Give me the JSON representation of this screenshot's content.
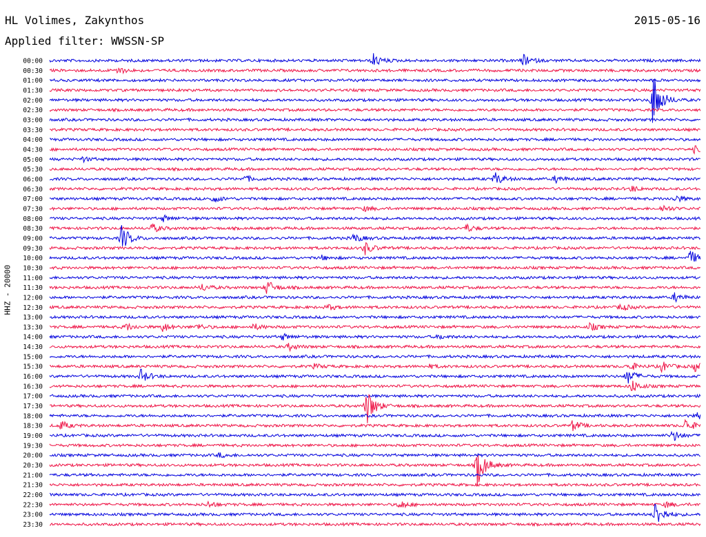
{
  "header": {
    "station": "HL Volimes, Zakynthos",
    "filter": "Applied filter: WWSSN-SP",
    "date": "2015-05-16"
  },
  "channel_label": "HHZ - 20000",
  "colors": {
    "trace_a": "#0000dd",
    "trace_b": "#ee1144"
  },
  "chart_data": {
    "type": "line",
    "title": "HL Volimes, Zakynthos",
    "subtitle": "Applied filter: WWSSN-SP",
    "ylabel": "HHZ - 20000",
    "xlabel": "",
    "rows": [
      "00:00",
      "00:30",
      "01:00",
      "01:30",
      "02:00",
      "02:30",
      "03:00",
      "03:30",
      "04:00",
      "04:30",
      "05:00",
      "05:30",
      "06:00",
      "06:30",
      "07:00",
      "07:30",
      "08:00",
      "08:30",
      "09:00",
      "09:30",
      "10:00",
      "10:30",
      "11:00",
      "11:30",
      "12:00",
      "12:30",
      "13:00",
      "13:30",
      "14:00",
      "14:30",
      "15:00",
      "15:30",
      "16:00",
      "16:30",
      "17:00",
      "17:30",
      "18:00",
      "18:30",
      "19:00",
      "19:30",
      "20:00",
      "20:30",
      "21:00",
      "21:30",
      "22:00",
      "22:30",
      "23:00",
      "23:30"
    ],
    "x_range_minutes": [
      0,
      30
    ],
    "events": [
      {
        "row": 0,
        "minute": 14.9,
        "amp": 0.9
      },
      {
        "row": 0,
        "minute": 21.8,
        "amp": 0.8
      },
      {
        "row": 1,
        "minute": 3.1,
        "amp": 0.5
      },
      {
        "row": 4,
        "minute": 27.8,
        "amp": 4.0
      },
      {
        "row": 9,
        "minute": 29.7,
        "amp": 0.4
      },
      {
        "row": 10,
        "minute": 1.5,
        "amp": 0.3
      },
      {
        "row": 12,
        "minute": 9.0,
        "amp": 0.4
      },
      {
        "row": 12,
        "minute": 20.5,
        "amp": 0.9
      },
      {
        "row": 12,
        "minute": 23.3,
        "amp": 0.5
      },
      {
        "row": 13,
        "minute": 26.8,
        "amp": 0.4
      },
      {
        "row": 14,
        "minute": 7.5,
        "amp": 0.5
      },
      {
        "row": 14,
        "minute": 28.8,
        "amp": 0.5
      },
      {
        "row": 15,
        "minute": 14.5,
        "amp": 0.3
      },
      {
        "row": 15,
        "minute": 28.2,
        "amp": 0.5
      },
      {
        "row": 16,
        "minute": 5.2,
        "amp": 0.4
      },
      {
        "row": 17,
        "minute": 4.7,
        "amp": 0.6
      },
      {
        "row": 17,
        "minute": 19.2,
        "amp": 0.5
      },
      {
        "row": 18,
        "minute": 3.3,
        "amp": 1.8
      },
      {
        "row": 18,
        "minute": 14.0,
        "amp": 0.6
      },
      {
        "row": 19,
        "minute": 14.5,
        "amp": 0.9
      },
      {
        "row": 20,
        "minute": 12.5,
        "amp": 0.3
      },
      {
        "row": 20,
        "minute": 29.5,
        "amp": 1.0
      },
      {
        "row": 23,
        "minute": 7.0,
        "amp": 0.5
      },
      {
        "row": 23,
        "minute": 10.0,
        "amp": 1.0
      },
      {
        "row": 24,
        "minute": 28.8,
        "amp": 0.6
      },
      {
        "row": 25,
        "minute": 12.8,
        "amp": 0.4
      },
      {
        "row": 25,
        "minute": 26.3,
        "amp": 0.5
      },
      {
        "row": 27,
        "minute": 3.5,
        "amp": 0.5
      },
      {
        "row": 27,
        "minute": 5.2,
        "amp": 0.6
      },
      {
        "row": 27,
        "minute": 6.8,
        "amp": 0.4
      },
      {
        "row": 27,
        "minute": 9.4,
        "amp": 0.4
      },
      {
        "row": 27,
        "minute": 24.9,
        "amp": 0.5
      },
      {
        "row": 28,
        "minute": 10.7,
        "amp": 0.4
      },
      {
        "row": 28,
        "minute": 17.9,
        "amp": 0.3
      },
      {
        "row": 29,
        "minute": 11.0,
        "amp": 0.5
      },
      {
        "row": 31,
        "minute": 12.2,
        "amp": 0.3
      },
      {
        "row": 31,
        "minute": 17.5,
        "amp": 0.2
      },
      {
        "row": 31,
        "minute": 26.7,
        "amp": 0.6
      },
      {
        "row": 31,
        "minute": 28.2,
        "amp": 0.7
      },
      {
        "row": 31,
        "minute": 29.7,
        "amp": 0.6
      },
      {
        "row": 32,
        "minute": 4.2,
        "amp": 0.9
      },
      {
        "row": 32,
        "minute": 26.6,
        "amp": 1.1
      },
      {
        "row": 33,
        "minute": 26.8,
        "amp": 0.9
      },
      {
        "row": 35,
        "minute": 14.6,
        "amp": 2.6
      },
      {
        "row": 36,
        "minute": 29.8,
        "amp": 0.5
      },
      {
        "row": 37,
        "minute": 0.5,
        "amp": 0.6
      },
      {
        "row": 37,
        "minute": 24.1,
        "amp": 0.7
      },
      {
        "row": 37,
        "minute": 29.3,
        "amp": 0.9
      },
      {
        "row": 38,
        "minute": 28.7,
        "amp": 0.8
      },
      {
        "row": 40,
        "minute": 7.8,
        "amp": 0.3
      },
      {
        "row": 41,
        "minute": 19.7,
        "amp": 2.8
      },
      {
        "row": 45,
        "minute": 7.3,
        "amp": 0.4
      },
      {
        "row": 45,
        "minute": 16.1,
        "amp": 0.6
      },
      {
        "row": 46,
        "minute": 27.9,
        "amp": 1.8
      },
      {
        "row": 45,
        "minute": 28.4,
        "amp": 0.4
      }
    ]
  }
}
